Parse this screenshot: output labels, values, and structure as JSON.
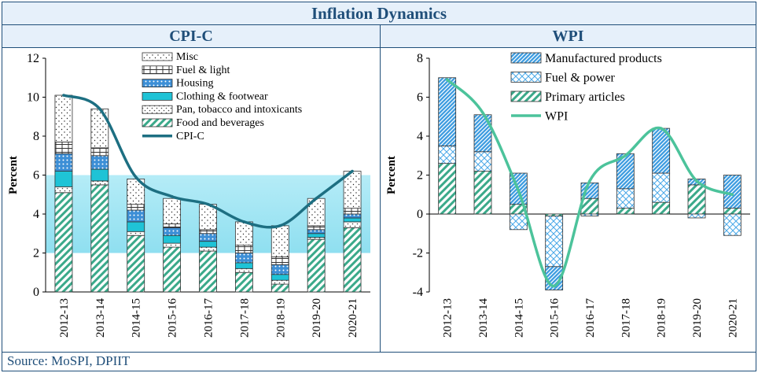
{
  "title": "Inflation Dynamics",
  "source": "Source: MoSPI, DPIIT",
  "colors": {
    "frame": "#1f4e79",
    "cpi_line": "#1d6f82",
    "wpi_line": "#4cc39b",
    "band": "#8fdff0",
    "food": "#3aa98a",
    "clothing": "#1fc3d6",
    "housing": "#3d8fd6",
    "manufactured": "#3d9ce0"
  },
  "chart_data": [
    {
      "type": "bar",
      "title": "CPI-C",
      "ylabel": "Percent",
      "ylim": [
        0,
        12
      ],
      "yticks": [
        0,
        2,
        4,
        6,
        8,
        10,
        12
      ],
      "band": [
        2,
        6
      ],
      "categories": [
        "2012-13",
        "2013-14",
        "2014-15",
        "2015-16",
        "2016-17",
        "2017-18",
        "2018-19",
        "2019-20",
        "2020-21"
      ],
      "series": [
        {
          "name": "Food and beverages",
          "values": [
            5.1,
            5.5,
            2.9,
            2.3,
            2.1,
            1.0,
            0.4,
            2.7,
            3.3
          ]
        },
        {
          "name": "Pan, tobacco and intoxicants",
          "values": [
            0.3,
            0.2,
            0.2,
            0.2,
            0.2,
            0.2,
            0.2,
            0.1,
            0.3
          ]
        },
        {
          "name": "Clothing & footwear",
          "values": [
            0.8,
            0.6,
            0.5,
            0.4,
            0.3,
            0.3,
            0.3,
            0.2,
            0.2
          ]
        },
        {
          "name": "Housing",
          "values": [
            0.9,
            0.7,
            0.6,
            0.4,
            0.4,
            0.5,
            0.5,
            0.2,
            0.2
          ]
        },
        {
          "name": "Fuel & light",
          "values": [
            0.6,
            0.4,
            0.3,
            0.2,
            0.2,
            0.4,
            0.4,
            0.2,
            0.3
          ]
        },
        {
          "name": "Misc",
          "values": [
            2.4,
            2.0,
            1.3,
            1.3,
            1.3,
            1.2,
            1.6,
            1.4,
            1.9
          ]
        }
      ],
      "line": {
        "name": "CPI-C",
        "values": [
          10.1,
          9.4,
          5.9,
          4.9,
          4.5,
          3.6,
          3.4,
          4.8,
          6.2
        ]
      }
    },
    {
      "type": "bar",
      "title": "WPI",
      "ylabel": "Percent",
      "ylim": [
        -4,
        8
      ],
      "yticks": [
        -4,
        -2,
        0,
        2,
        4,
        6,
        8
      ],
      "categories": [
        "2012-13",
        "2013-14",
        "2014-15",
        "2015-16",
        "2016-17",
        "2017-18",
        "2018-19",
        "2019-20",
        "2020-21"
      ],
      "series": [
        {
          "name": "Primary articles",
          "values": [
            2.6,
            2.2,
            0.5,
            -0.1,
            0.8,
            0.3,
            0.6,
            1.5,
            0.3
          ]
        },
        {
          "name": "Fuel & power",
          "values": [
            0.9,
            1.0,
            -0.8,
            -2.6,
            -0.1,
            1.0,
            1.5,
            -0.2,
            -1.1
          ]
        },
        {
          "name": "Manufactured  products",
          "values": [
            3.5,
            1.9,
            1.6,
            -1.2,
            0.8,
            1.8,
            2.3,
            0.3,
            1.7
          ]
        }
      ],
      "line": {
        "name": "WPI",
        "values": [
          6.9,
          5.2,
          1.2,
          -3.7,
          1.7,
          3.0,
          4.4,
          1.7,
          1.0
        ]
      }
    }
  ]
}
